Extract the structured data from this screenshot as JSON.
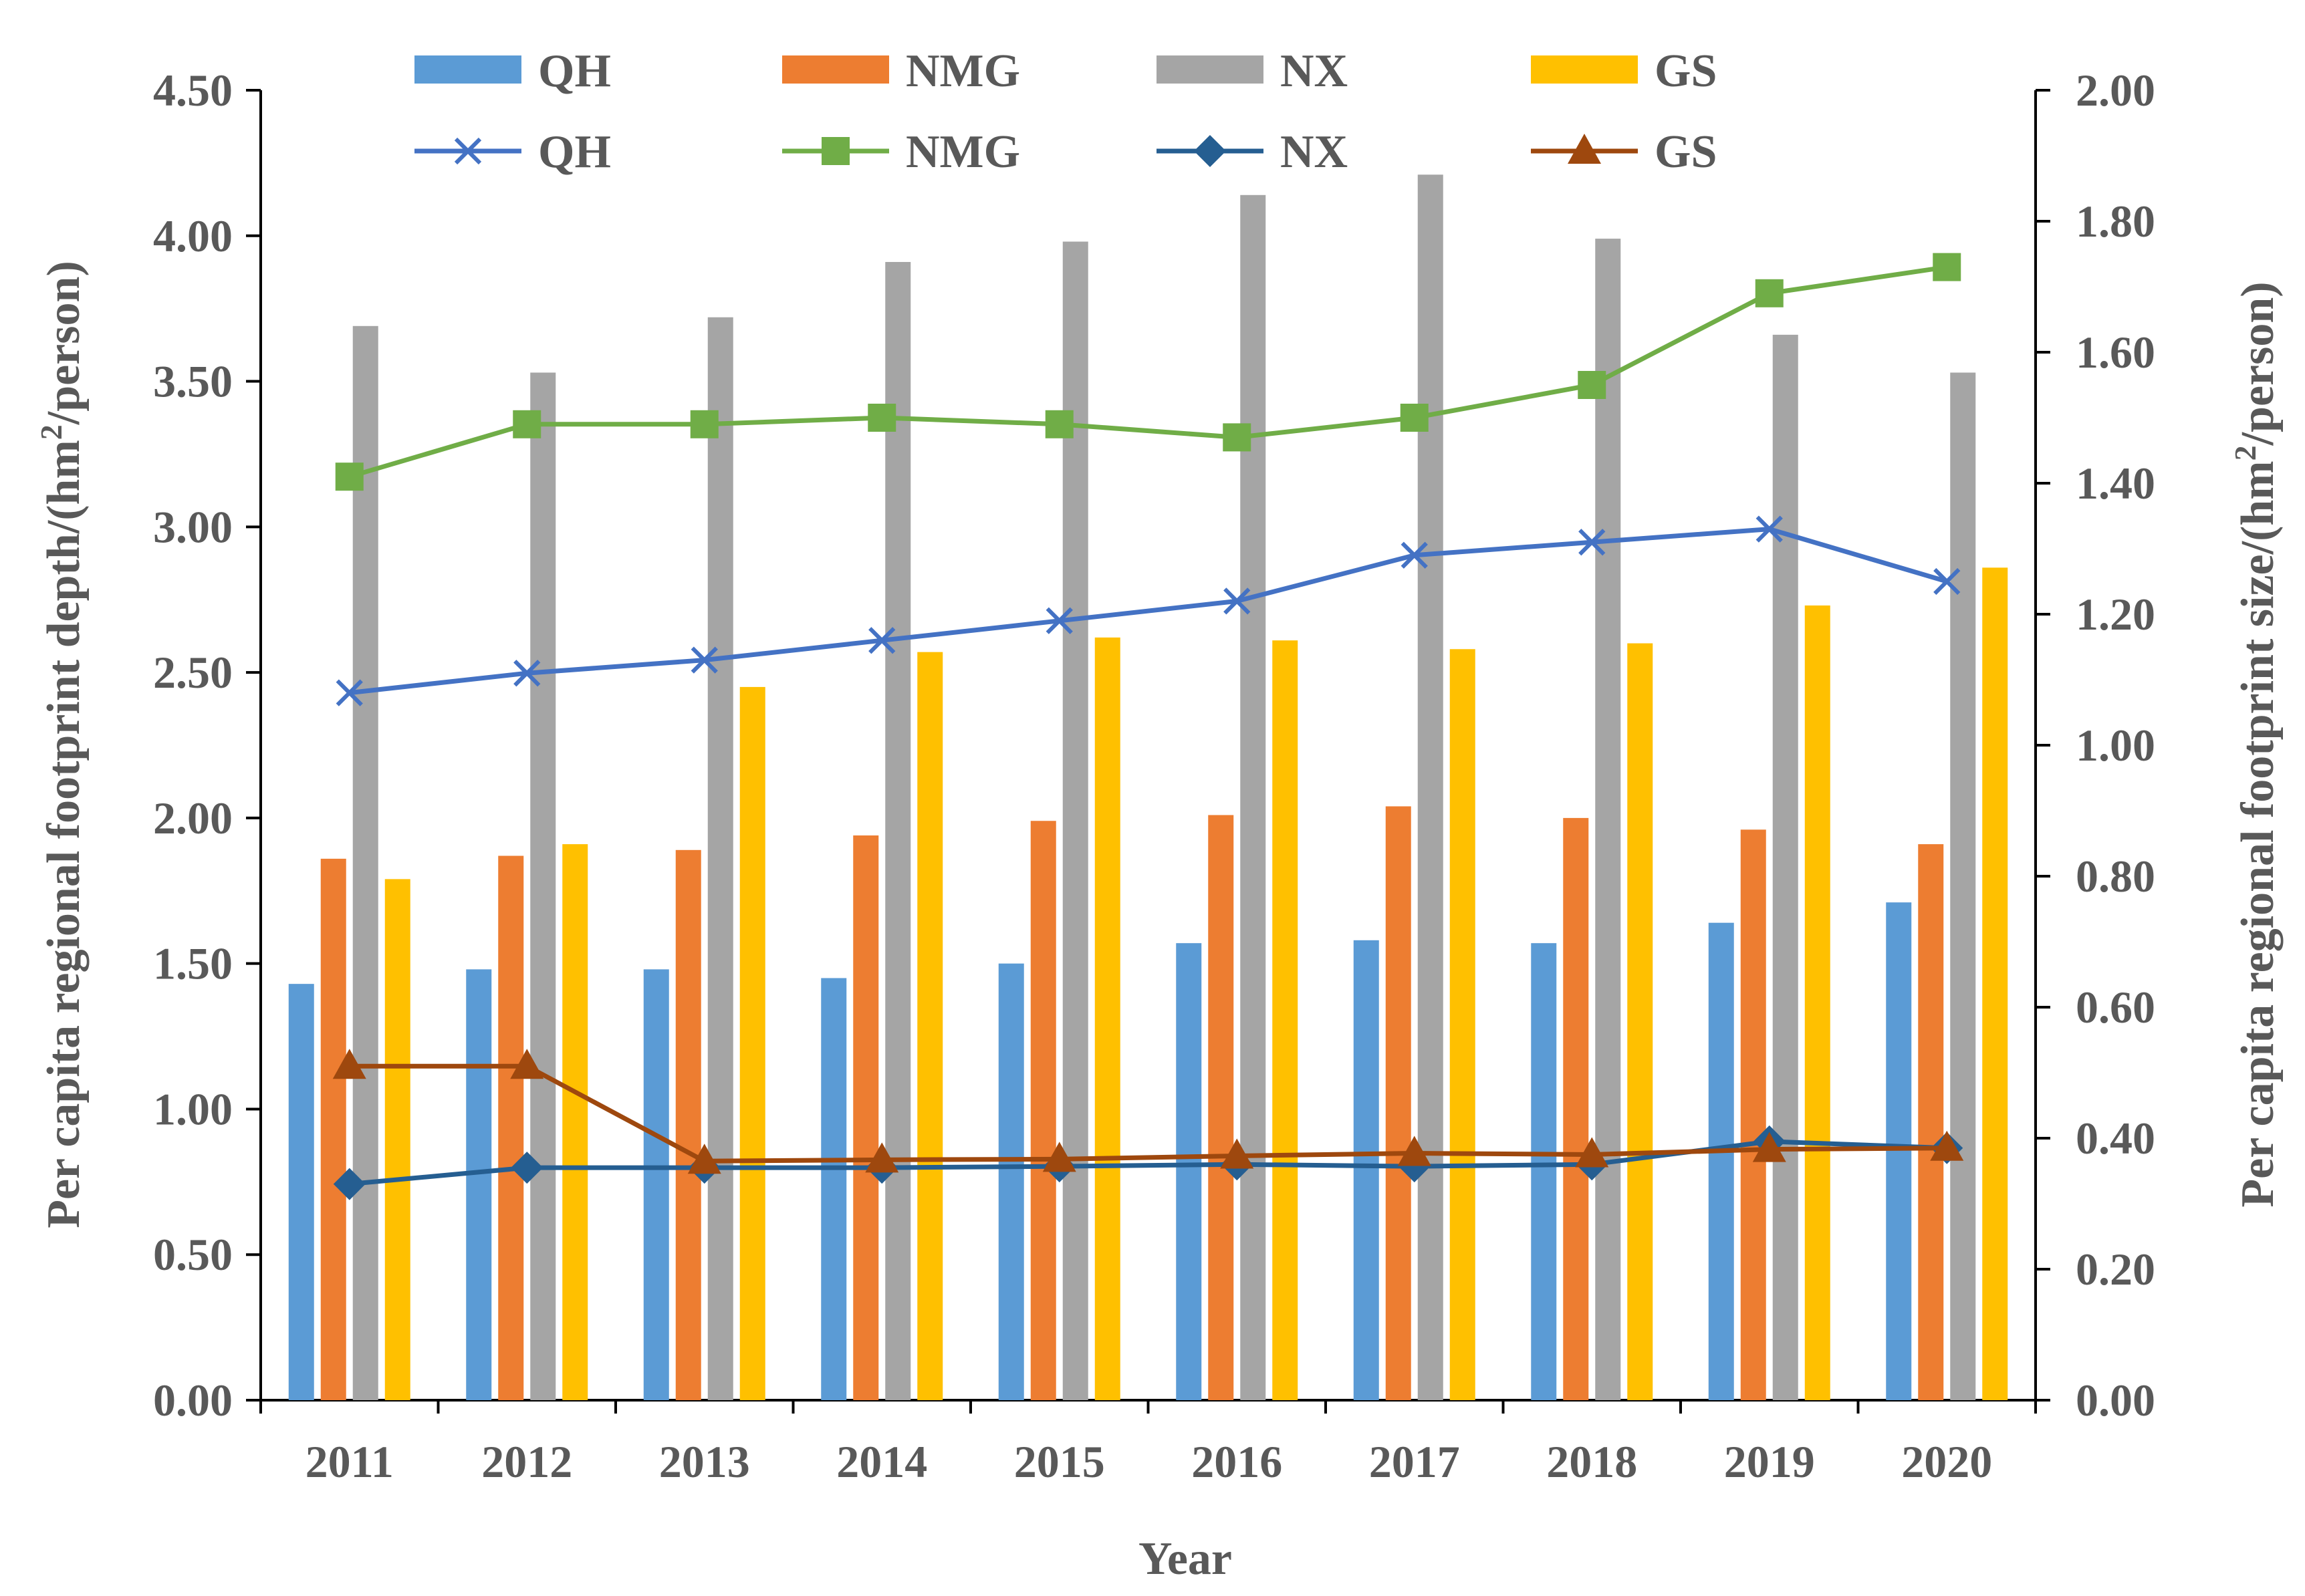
{
  "chart_data": {
    "type": "bar+line",
    "categories": [
      "2011",
      "2012",
      "2013",
      "2014",
      "2015",
      "2016",
      "2017",
      "2018",
      "2019",
      "2020"
    ],
    "xlabel": "Year",
    "ylabel_left_parts": [
      "Per capita regional footprint depth/(hm",
      "2",
      "/person)"
    ],
    "ylabel_right_parts": [
      "Per capita regional footprint size/(hm",
      "2",
      "/person)"
    ],
    "ylim_left": [
      0,
      4.5
    ],
    "ylim_right": [
      0,
      2.0
    ],
    "yticks_left": [
      "0.00",
      "0.50",
      "1.00",
      "1.50",
      "2.00",
      "2.50",
      "3.00",
      "3.50",
      "4.00",
      "4.50"
    ],
    "yticks_right": [
      "0.00",
      "0.20",
      "0.40",
      "0.60",
      "0.80",
      "1.00",
      "1.20",
      "1.40",
      "1.60",
      "1.80",
      "2.00"
    ],
    "bar_series": [
      {
        "name": "QH",
        "color": "#5B9BD5",
        "values": [
          1.43,
          1.48,
          1.48,
          1.45,
          1.5,
          1.57,
          1.58,
          1.57,
          1.64,
          1.71
        ]
      },
      {
        "name": "NMG",
        "color": "#ED7D31",
        "values": [
          1.86,
          1.87,
          1.89,
          1.94,
          1.99,
          2.01,
          2.04,
          2.0,
          1.96,
          1.91
        ]
      },
      {
        "name": "NX",
        "color": "#A5A5A5",
        "values": [
          3.69,
          3.53,
          3.72,
          3.91,
          3.98,
          4.14,
          4.21,
          3.99,
          3.66,
          3.53
        ]
      },
      {
        "name": "GS",
        "color": "#FFC000",
        "values": [
          1.79,
          1.91,
          2.45,
          2.57,
          2.62,
          2.61,
          2.58,
          2.6,
          2.73,
          2.86
        ]
      }
    ],
    "line_series": [
      {
        "name": "QH",
        "color": "#4472C4",
        "marker": "x",
        "values": [
          1.08,
          1.11,
          1.13,
          1.16,
          1.19,
          1.22,
          1.29,
          1.31,
          1.33,
          1.25
        ]
      },
      {
        "name": "NMG",
        "color": "#70AD47",
        "marker": "square",
        "values": [
          1.41,
          1.49,
          1.49,
          1.5,
          1.49,
          1.47,
          1.5,
          1.55,
          1.69,
          1.73
        ]
      },
      {
        "name": "NX",
        "color": "#255E91",
        "marker": "diamond",
        "values": [
          0.33,
          0.355,
          0.355,
          0.355,
          0.357,
          0.36,
          0.357,
          0.36,
          0.395,
          0.385
        ]
      },
      {
        "name": "GS",
        "color": "#9E480E",
        "marker": "triangle",
        "values": [
          0.51,
          0.51,
          0.365,
          0.367,
          0.368,
          0.373,
          0.377,
          0.375,
          0.383,
          0.385
        ]
      }
    ]
  }
}
